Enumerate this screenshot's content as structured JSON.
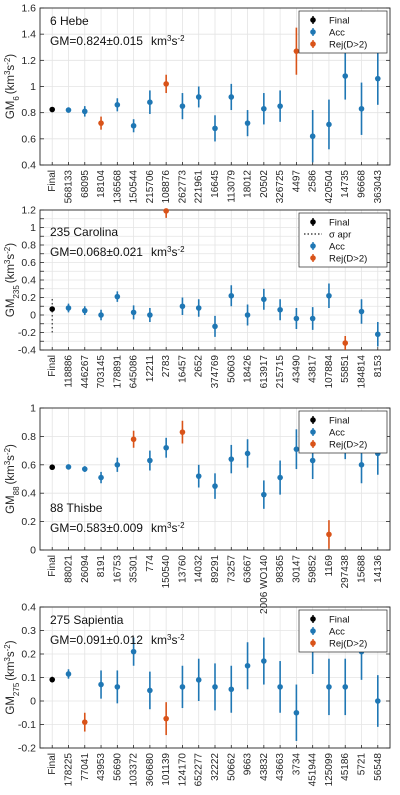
{
  "figure": {
    "colors": {
      "final": "#000000",
      "acc": "#1f77b4",
      "rej": "#d95319"
    },
    "legend_labels": {
      "final": "Final",
      "sigma": "σ apr",
      "acc": "Acc",
      "rej": "Rej(D>2)"
    }
  },
  "chart_data": [
    {
      "type": "scatter",
      "subtype": "errorbar",
      "title": "6 Hebe",
      "gm_text": "GM=0.824±0.015",
      "gm_unit": "km",
      "gm_unit_exp": "3",
      "gm_unit_s": "s",
      "gm_unit_sexp": "-2",
      "ylabel_main": "GM",
      "ylabel_sub": "6",
      "ylabel_units": "(km",
      "ylabel_units_exp": "3",
      "ylabel_units_s": "s",
      "ylabel_units_sexp": "-2",
      "ylabel_units_close": ")",
      "ylim": [
        0.4,
        1.6
      ],
      "yticks": [
        0.4,
        0.6,
        0.8,
        1,
        1.2,
        1.4,
        1.6
      ],
      "ytick_labels": [
        "0.4",
        "0.6",
        "0.8",
        "1",
        "1.2",
        "1.4",
        "1.6"
      ],
      "grid": true,
      "legend": {
        "position": "top-right",
        "entries": [
          "final",
          "acc",
          "rej"
        ]
      },
      "categories": [
        "Final",
        "568133",
        "68095",
        "18104",
        "136568",
        "150544",
        "215706",
        "108876",
        "262773",
        "221961",
        "16645",
        "113079",
        "18012",
        "20502",
        "326725",
        "4497",
        "2586",
        "420504",
        "14735",
        "96668",
        "363043"
      ],
      "points": [
        {
          "y": 0.824,
          "err": 0.015,
          "status": "final"
        },
        {
          "y": 0.82,
          "err": 0.02,
          "status": "acc"
        },
        {
          "y": 0.81,
          "err": 0.04,
          "status": "acc"
        },
        {
          "y": 0.72,
          "err": 0.05,
          "status": "rej"
        },
        {
          "y": 0.86,
          "err": 0.05,
          "status": "acc"
        },
        {
          "y": 0.7,
          "err": 0.05,
          "status": "acc"
        },
        {
          "y": 0.88,
          "err": 0.09,
          "status": "acc"
        },
        {
          "y": 1.02,
          "err": 0.07,
          "status": "rej"
        },
        {
          "y": 0.85,
          "err": 0.1,
          "status": "acc"
        },
        {
          "y": 0.92,
          "err": 0.08,
          "status": "acc"
        },
        {
          "y": 0.68,
          "err": 0.1,
          "status": "acc"
        },
        {
          "y": 0.92,
          "err": 0.1,
          "status": "acc"
        },
        {
          "y": 0.72,
          "err": 0.1,
          "status": "acc"
        },
        {
          "y": 0.83,
          "err": 0.12,
          "status": "acc"
        },
        {
          "y": 0.85,
          "err": 0.12,
          "status": "acc"
        },
        {
          "y": 1.27,
          "err": 0.18,
          "status": "rej"
        },
        {
          "y": 0.62,
          "err": 0.2,
          "status": "acc"
        },
        {
          "y": 0.71,
          "err": 0.19,
          "status": "acc"
        },
        {
          "y": 1.08,
          "err": 0.18,
          "status": "acc"
        },
        {
          "y": 0.83,
          "err": 0.2,
          "status": "acc"
        },
        {
          "y": 1.06,
          "err": 0.2,
          "status": "acc"
        }
      ]
    },
    {
      "type": "scatter",
      "subtype": "errorbar",
      "title": "235 Carolina",
      "gm_text": "GM=0.068±0.021",
      "gm_unit": "km",
      "gm_unit_exp": "3",
      "gm_unit_s": "s",
      "gm_unit_sexp": "-2",
      "ylabel_main": "GM",
      "ylabel_sub": "235",
      "ylabel_units": "(km",
      "ylabel_units_exp": "3",
      "ylabel_units_s": "s",
      "ylabel_units_sexp": "-2",
      "ylabel_units_close": ")",
      "ylim": [
        -0.4,
        1.2
      ],
      "yticks": [
        -0.4,
        -0.3,
        -0.2,
        -0.1,
        0,
        0.1,
        0.2,
        0.3,
        0.4,
        0.5,
        0.6,
        0.7,
        0.8,
        0.9,
        1,
        1.1,
        1.2
      ],
      "ytick_labels": [
        "-0.4",
        "-0.3",
        "-0.2",
        "-0.1",
        "0",
        "0.1",
        "0.2",
        "0.3",
        "0.4",
        "0.5",
        "0.6",
        "0.7",
        "0.8",
        "0.9",
        "1",
        "1.1",
        "1.2"
      ],
      "grid": true,
      "sigma_apr": 0.2,
      "legend": {
        "position": "top-right",
        "entries": [
          "final",
          "sigma",
          "acc",
          "rej"
        ]
      },
      "categories": [
        "Final",
        "118886",
        "446267",
        "703145",
        "178891",
        "645086",
        "12211",
        "2783",
        "16457",
        "2652",
        "374769",
        "50603",
        "18426",
        "613917",
        "215715",
        "43490",
        "43817",
        "107884",
        "55851",
        "184814",
        "8153"
      ],
      "points": [
        {
          "y": 0.068,
          "err": 0.021,
          "status": "final"
        },
        {
          "y": 0.08,
          "err": 0.05,
          "status": "acc"
        },
        {
          "y": 0.05,
          "err": 0.05,
          "status": "acc"
        },
        {
          "y": 0.0,
          "err": 0.06,
          "status": "acc"
        },
        {
          "y": 0.21,
          "err": 0.06,
          "status": "acc"
        },
        {
          "y": 0.03,
          "err": 0.08,
          "status": "acc"
        },
        {
          "y": 0.0,
          "err": 0.08,
          "status": "acc"
        },
        {
          "y": 1.19,
          "err": 0.08,
          "status": "rej"
        },
        {
          "y": 0.1,
          "err": 0.1,
          "status": "acc"
        },
        {
          "y": 0.08,
          "err": 0.1,
          "status": "acc"
        },
        {
          "y": -0.13,
          "err": 0.12,
          "status": "acc"
        },
        {
          "y": 0.22,
          "err": 0.12,
          "status": "acc"
        },
        {
          "y": 0.0,
          "err": 0.12,
          "status": "acc"
        },
        {
          "y": 0.18,
          "err": 0.12,
          "status": "acc"
        },
        {
          "y": 0.06,
          "err": 0.12,
          "status": "acc"
        },
        {
          "y": -0.04,
          "err": 0.12,
          "status": "acc"
        },
        {
          "y": -0.04,
          "err": 0.13,
          "status": "acc"
        },
        {
          "y": 0.22,
          "err": 0.14,
          "status": "acc"
        },
        {
          "y": -0.32,
          "err": 0.08,
          "status": "rej"
        },
        {
          "y": 0.04,
          "err": 0.14,
          "status": "acc"
        },
        {
          "y": -0.22,
          "err": 0.14,
          "status": "acc"
        }
      ]
    },
    {
      "type": "scatter",
      "subtype": "errorbar",
      "title": "88 Thisbe",
      "gm_text": "GM=0.583±0.009",
      "gm_unit": "km",
      "gm_unit_exp": "3",
      "gm_unit_s": "s",
      "gm_unit_sexp": "-2",
      "ylabel_main": "GM",
      "ylabel_sub": "88",
      "ylabel_units": "(km",
      "ylabel_units_exp": "3",
      "ylabel_units_s": "s",
      "ylabel_units_sexp": "-2",
      "ylabel_units_close": ")",
      "ylim": [
        0,
        1
      ],
      "yticks": [
        0,
        0.2,
        0.4,
        0.6,
        0.8,
        1
      ],
      "ytick_labels": [
        "0",
        "0.2",
        "0.4",
        "0.6",
        "0.8",
        "1"
      ],
      "grid": true,
      "legend": {
        "position": "top-right",
        "entries": [
          "final",
          "acc",
          "rej"
        ]
      },
      "categories": [
        "Final",
        "88021",
        "26094",
        "8191",
        "16753",
        "35301",
        "774",
        "150540",
        "13760",
        "14032",
        "89291",
        "73257",
        "63667",
        "2006 WO140",
        "98365",
        "30147",
        "59852",
        "1169",
        "297438",
        "15688",
        "14136"
      ],
      "points": [
        {
          "y": 0.583,
          "err": 0.009,
          "status": "final"
        },
        {
          "y": 0.585,
          "err": 0.01,
          "status": "acc"
        },
        {
          "y": 0.57,
          "err": 0.02,
          "status": "acc"
        },
        {
          "y": 0.51,
          "err": 0.04,
          "status": "acc"
        },
        {
          "y": 0.6,
          "err": 0.05,
          "status": "acc"
        },
        {
          "y": 0.78,
          "err": 0.06,
          "status": "rej"
        },
        {
          "y": 0.63,
          "err": 0.07,
          "status": "acc"
        },
        {
          "y": 0.72,
          "err": 0.07,
          "status": "acc"
        },
        {
          "y": 0.83,
          "err": 0.08,
          "status": "rej"
        },
        {
          "y": 0.52,
          "err": 0.08,
          "status": "acc"
        },
        {
          "y": 0.45,
          "err": 0.09,
          "status": "acc"
        },
        {
          "y": 0.64,
          "err": 0.1,
          "status": "acc"
        },
        {
          "y": 0.68,
          "err": 0.1,
          "status": "acc"
        },
        {
          "y": 0.39,
          "err": 0.1,
          "status": "acc"
        },
        {
          "y": 0.51,
          "err": 0.12,
          "status": "acc"
        },
        {
          "y": 0.71,
          "err": 0.14,
          "status": "acc"
        },
        {
          "y": 0.63,
          "err": 0.13,
          "status": "acc"
        },
        {
          "y": 0.11,
          "err": 0.1,
          "status": "rej"
        },
        {
          "y": 0.79,
          "err": 0.15,
          "status": "acc"
        },
        {
          "y": 0.6,
          "err": 0.13,
          "status": "acc"
        },
        {
          "y": 0.68,
          "err": 0.15,
          "status": "acc"
        }
      ]
    },
    {
      "type": "scatter",
      "subtype": "errorbar",
      "title": "275 Sapientia",
      "gm_text": "GM=0.091±0.012",
      "gm_unit": "km",
      "gm_unit_exp": "3",
      "gm_unit_s": "s",
      "gm_unit_sexp": "-2",
      "ylabel_main": "GM",
      "ylabel_sub": "275",
      "ylabel_units": "(km",
      "ylabel_units_exp": "3",
      "ylabel_units_s": "s",
      "ylabel_units_sexp": "-2",
      "ylabel_units_close": ")",
      "ylim": [
        -0.2,
        0.4
      ],
      "yticks": [
        -0.2,
        -0.1,
        0,
        0.1,
        0.2,
        0.3,
        0.4
      ],
      "ytick_labels": [
        "-0.2",
        "-0.1",
        "0",
        "0.1",
        "0.2",
        "0.3",
        "0.4"
      ],
      "grid": true,
      "legend": {
        "position": "top-right",
        "entries": [
          "final",
          "acc",
          "rej"
        ]
      },
      "categories": [
        "Final",
        "178225",
        "77041",
        "43953",
        "56690",
        "103372",
        "360680",
        "101139",
        "124170",
        "652277",
        "32222",
        "50662",
        "9663",
        "43832",
        "43663",
        "3734",
        "451944",
        "125099",
        "45186",
        "5721",
        "56548"
      ],
      "points": [
        {
          "y": 0.091,
          "err": 0.012,
          "status": "final"
        },
        {
          "y": 0.115,
          "err": 0.02,
          "status": "acc"
        },
        {
          "y": -0.09,
          "err": 0.04,
          "status": "rej"
        },
        {
          "y": 0.07,
          "err": 0.06,
          "status": "acc"
        },
        {
          "y": 0.06,
          "err": 0.07,
          "status": "acc"
        },
        {
          "y": 0.21,
          "err": 0.06,
          "status": "acc"
        },
        {
          "y": 0.045,
          "err": 0.08,
          "status": "acc"
        },
        {
          "y": -0.075,
          "err": 0.07,
          "status": "rej"
        },
        {
          "y": 0.06,
          "err": 0.09,
          "status": "acc"
        },
        {
          "y": 0.09,
          "err": 0.09,
          "status": "acc"
        },
        {
          "y": 0.06,
          "err": 0.1,
          "status": "acc"
        },
        {
          "y": 0.05,
          "err": 0.1,
          "status": "acc"
        },
        {
          "y": 0.15,
          "err": 0.1,
          "status": "acc"
        },
        {
          "y": 0.17,
          "err": 0.1,
          "status": "acc"
        },
        {
          "y": 0.06,
          "err": 0.11,
          "status": "acc"
        },
        {
          "y": -0.05,
          "err": 0.12,
          "status": "acc"
        },
        {
          "y": 0.245,
          "err": 0.13,
          "status": "acc"
        },
        {
          "y": 0.06,
          "err": 0.12,
          "status": "acc"
        },
        {
          "y": 0.06,
          "err": 0.12,
          "status": "acc"
        },
        {
          "y": 0.21,
          "err": 0.12,
          "status": "acc"
        },
        {
          "y": 0.0,
          "err": 0.11,
          "status": "acc"
        }
      ]
    }
  ]
}
